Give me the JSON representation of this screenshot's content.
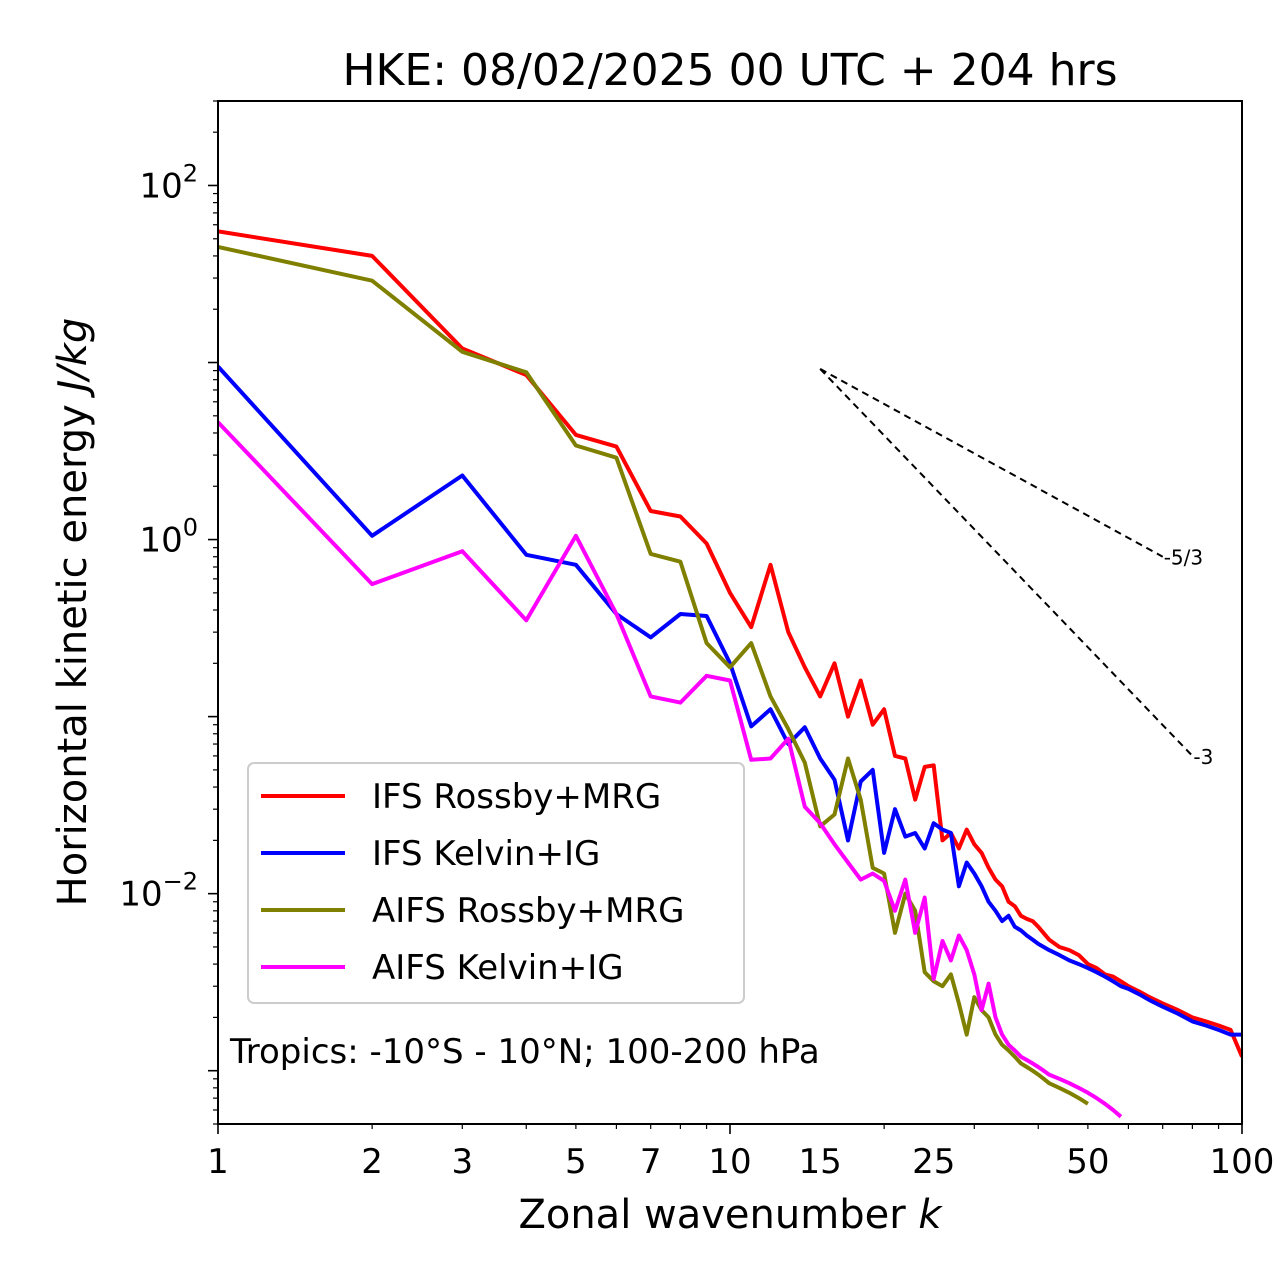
{
  "chart_data": {
    "type": "line",
    "title": "HKE: 08/02/2025 00 UTC + 204 hrs",
    "xlabel": "Zonal wavenumber k",
    "ylabel": "Horizontal kinetic energy J/kg",
    "xscale": "log",
    "yscale": "log",
    "xlim": [
      1,
      100
    ],
    "ylim": [
      0.0005,
      300
    ],
    "xticks": [
      1,
      2,
      3,
      5,
      7,
      10,
      15,
      25,
      50,
      100
    ],
    "xtick_labels": [
      "1",
      "2",
      "3",
      "5",
      "7",
      "10",
      "15",
      "25",
      "50",
      "100"
    ],
    "yticks": [
      0.01,
      1,
      100
    ],
    "ytick_labels": [
      {
        "base": "10",
        "exp": "−2"
      },
      {
        "base": "10",
        "exp": "0"
      },
      {
        "base": "10",
        "exp": "2"
      }
    ],
    "grid": false,
    "legend_position": "lower-left",
    "annotation": "Tropics: -10°S - 10°N; 100-200 hPa",
    "reference_slopes": [
      {
        "label": "-5/3",
        "x": [
          15,
          70
        ],
        "y": [
          9.2,
          0.8
        ]
      },
      {
        "label": "-3",
        "x": [
          15,
          80
        ],
        "y": [
          9.2,
          0.06
        ]
      }
    ],
    "series": [
      {
        "name": "IFS Rossby+MRG",
        "color": "#ff0000",
        "x": [
          1,
          2,
          3,
          4,
          5,
          6,
          7,
          8,
          9,
          10,
          11,
          12,
          13,
          14,
          15,
          16,
          17,
          18,
          19,
          20,
          21,
          22,
          23,
          24,
          25,
          26,
          27,
          28,
          29,
          30,
          31,
          32,
          33,
          34,
          35,
          36,
          37,
          38,
          39,
          40,
          42,
          44,
          46,
          48,
          50,
          52,
          54,
          56,
          58,
          60,
          63,
          66,
          70,
          75,
          80,
          85,
          90,
          95,
          100
        ],
        "y": [
          55,
          40,
          12,
          8.5,
          3.9,
          3.35,
          1.45,
          1.35,
          0.95,
          0.5,
          0.32,
          0.72,
          0.3,
          0.19,
          0.13,
          0.2,
          0.1,
          0.16,
          0.09,
          0.11,
          0.06,
          0.058,
          0.034,
          0.052,
          0.053,
          0.02,
          0.022,
          0.018,
          0.023,
          0.019,
          0.017,
          0.014,
          0.012,
          0.011,
          0.009,
          0.0085,
          0.0075,
          0.0072,
          0.007,
          0.0065,
          0.0055,
          0.005,
          0.0048,
          0.0045,
          0.004,
          0.0038,
          0.0035,
          0.0034,
          0.0032,
          0.003,
          0.0028,
          0.0026,
          0.0024,
          0.0022,
          0.002,
          0.0019,
          0.0018,
          0.0017,
          0.0012
        ]
      },
      {
        "name": "IFS Kelvin+IG",
        "color": "#0000ff",
        "x": [
          1,
          2,
          3,
          4,
          5,
          6,
          7,
          8,
          9,
          10,
          11,
          12,
          13,
          14,
          15,
          16,
          17,
          18,
          19,
          20,
          21,
          22,
          23,
          24,
          25,
          26,
          27,
          28,
          29,
          30,
          31,
          32,
          33,
          34,
          35,
          36,
          37,
          38,
          39,
          40,
          42,
          44,
          46,
          48,
          50,
          52,
          54,
          56,
          58,
          60,
          63,
          66,
          70,
          75,
          80,
          85,
          90,
          95,
          100
        ],
        "y": [
          9.5,
          1.05,
          2.3,
          0.82,
          0.72,
          0.38,
          0.28,
          0.38,
          0.37,
          0.2,
          0.088,
          0.11,
          0.07,
          0.087,
          0.058,
          0.044,
          0.02,
          0.043,
          0.05,
          0.017,
          0.03,
          0.021,
          0.022,
          0.018,
          0.025,
          0.023,
          0.022,
          0.011,
          0.015,
          0.013,
          0.011,
          0.009,
          0.008,
          0.007,
          0.0075,
          0.0065,
          0.0062,
          0.0058,
          0.0055,
          0.0052,
          0.0048,
          0.0045,
          0.0042,
          0.004,
          0.0038,
          0.0036,
          0.0034,
          0.0032,
          0.003,
          0.0029,
          0.0027,
          0.0025,
          0.0023,
          0.0021,
          0.0019,
          0.0018,
          0.0017,
          0.0016,
          0.0016
        ]
      },
      {
        "name": "AIFS Rossby+MRG",
        "color": "#808000",
        "x": [
          1,
          2,
          3,
          4,
          5,
          6,
          7,
          8,
          9,
          10,
          11,
          12,
          13,
          14,
          15,
          16,
          17,
          18,
          19,
          20,
          21,
          22,
          23,
          24,
          25,
          26,
          27,
          28,
          29,
          30,
          31,
          32,
          33,
          34,
          35,
          36,
          37,
          38,
          39,
          40,
          41,
          42,
          44,
          46,
          48,
          50
        ],
        "y": [
          45,
          29,
          11.5,
          8.8,
          3.4,
          2.9,
          0.83,
          0.75,
          0.26,
          0.19,
          0.26,
          0.13,
          0.085,
          0.055,
          0.024,
          0.028,
          0.058,
          0.034,
          0.014,
          0.013,
          0.006,
          0.01,
          0.008,
          0.0036,
          0.0032,
          0.003,
          0.0035,
          0.0024,
          0.0016,
          0.0026,
          0.0022,
          0.002,
          0.0016,
          0.0014,
          0.0013,
          0.0012,
          0.0011,
          0.00105,
          0.001,
          0.00095,
          0.0009,
          0.00085,
          0.0008,
          0.00075,
          0.0007,
          0.00065
        ]
      },
      {
        "name": "AIFS Kelvin+IG",
        "color": "#ff00ff",
        "x": [
          1,
          2,
          3,
          4,
          5,
          6,
          7,
          8,
          9,
          10,
          11,
          12,
          13,
          14,
          15,
          16,
          17,
          18,
          19,
          20,
          21,
          22,
          23,
          24,
          25,
          26,
          27,
          28,
          29,
          30,
          31,
          32,
          33,
          34,
          35,
          36,
          37,
          38,
          39,
          40,
          41,
          42,
          44,
          46,
          48,
          50,
          52,
          54,
          56,
          58
        ],
        "y": [
          4.6,
          0.56,
          0.86,
          0.35,
          1.05,
          0.38,
          0.13,
          0.12,
          0.17,
          0.16,
          0.057,
          0.058,
          0.075,
          0.031,
          0.025,
          0.019,
          0.015,
          0.012,
          0.013,
          0.0118,
          0.008,
          0.012,
          0.006,
          0.0095,
          0.0033,
          0.0054,
          0.0042,
          0.0058,
          0.0048,
          0.0035,
          0.0022,
          0.0031,
          0.002,
          0.0016,
          0.0014,
          0.0013,
          0.0012,
          0.00115,
          0.0011,
          0.00105,
          0.001,
          0.00095,
          0.0009,
          0.00085,
          0.0008,
          0.00075,
          0.0007,
          0.00065,
          0.0006,
          0.00055
        ]
      }
    ]
  }
}
